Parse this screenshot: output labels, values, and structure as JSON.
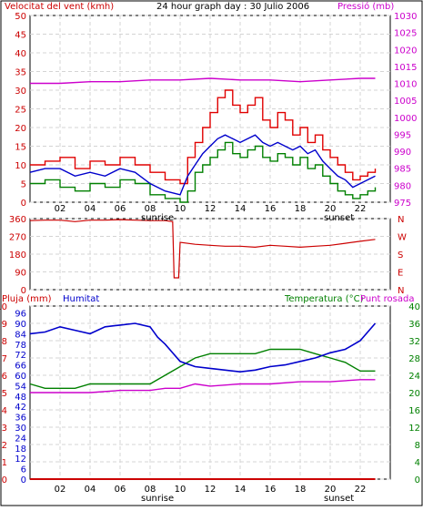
{
  "header": {
    "wind_label": "Velocitat del vent (kmh)",
    "title": "24 hour graph day : 30 Julio 2006",
    "pressure_label": "Pressió (mb)"
  },
  "bottom_header": {
    "rain_label": "Pluja (mm)",
    "humidity_label": "Humitat",
    "temp_label": "Temperatura (°C)",
    "dew_label": "Punt rosada"
  },
  "x_axis": {
    "ticks": [
      "02",
      "04",
      "06",
      "08",
      "10",
      "12",
      "14",
      "16",
      "18",
      "20",
      "22"
    ],
    "sunrise_label": "sunrise",
    "sunset_label": "sunset"
  },
  "colors": {
    "wind_gust": "#e00000",
    "wind_speed": "#0000cc",
    "wind_avg": "#008000",
    "pressure": "#cc00cc",
    "direction": "#cc0000",
    "humidity": "#0000cc",
    "temperature": "#008000",
    "dewpoint": "#cc00cc",
    "rain": "#cc0000"
  },
  "chart_data": [
    {
      "type": "line",
      "title": "24 hour graph day : 30 Julio 2006",
      "x_unit": "hour of day",
      "x_ticks": [
        "02",
        "04",
        "06",
        "08",
        "10",
        "12",
        "14",
        "16",
        "18",
        "20",
        "22"
      ],
      "y_left": {
        "label": "Velocitat del vent (kmh)",
        "ticks": [
          0,
          5,
          10,
          15,
          20,
          25,
          30,
          35,
          40,
          45,
          50
        ],
        "range": [
          0,
          50
        ]
      },
      "y_right": {
        "label": "Pressió (mb)",
        "ticks": [
          975,
          980,
          985,
          990,
          995,
          1000,
          1005,
          1010,
          1015,
          1020,
          1025,
          1030
        ],
        "range": [
          975,
          1030
        ]
      },
      "grid": true,
      "series": [
        {
          "axis": "left",
          "x": [
            0,
            1,
            2,
            3,
            4,
            5,
            6,
            7,
            8,
            9,
            10,
            10.5,
            11,
            11.5,
            12,
            12.5,
            13,
            13.5,
            14,
            14.5,
            15,
            15.5,
            16,
            16.5,
            17,
            17.5,
            18,
            18.5,
            19,
            19.5,
            20,
            20.5,
            21,
            21.5,
            22,
            22.5,
            23
          ],
          "values": [
            10,
            11,
            12,
            9,
            11,
            10,
            12,
            10,
            8,
            6,
            5,
            12,
            16,
            20,
            24,
            28,
            30,
            26,
            24,
            26,
            28,
            22,
            20,
            24,
            22,
            18,
            20,
            16,
            18,
            14,
            12,
            10,
            8,
            6,
            7,
            8,
            9
          ]
        },
        {
          "axis": "left",
          "x": [
            0,
            1,
            2,
            3,
            4,
            5,
            6,
            7,
            8,
            9,
            10,
            10.5,
            11,
            11.5,
            12,
            12.5,
            13,
            13.5,
            14,
            14.5,
            15,
            15.5,
            16,
            16.5,
            17,
            17.5,
            18,
            18.5,
            19,
            19.5,
            20,
            20.5,
            21,
            21.5,
            22,
            22.5,
            23
          ],
          "values": [
            8,
            9,
            9,
            7,
            8,
            7,
            9,
            8,
            5,
            3,
            2,
            7,
            10,
            13,
            15,
            17,
            18,
            17,
            16,
            17,
            18,
            16,
            15,
            16,
            15,
            14,
            15,
            13,
            14,
            11,
            9,
            7,
            6,
            4,
            5,
            6,
            7
          ]
        },
        {
          "axis": "left",
          "x": [
            0,
            1,
            2,
            3,
            4,
            5,
            6,
            7,
            8,
            9,
            10,
            10.5,
            11,
            11.5,
            12,
            12.5,
            13,
            13.5,
            14,
            14.5,
            15,
            15.5,
            16,
            16.5,
            17,
            17.5,
            18,
            18.5,
            19,
            19.5,
            20,
            20.5,
            21,
            21.5,
            22,
            22.5,
            23
          ],
          "values": [
            5,
            6,
            4,
            3,
            5,
            4,
            6,
            5,
            2,
            1,
            0,
            3,
            8,
            10,
            12,
            14,
            16,
            13,
            12,
            14,
            15,
            12,
            11,
            13,
            12,
            10,
            12,
            9,
            10,
            7,
            5,
            3,
            2,
            1,
            2,
            3,
            4
          ]
        },
        {
          "axis": "right",
          "x": [
            0,
            2,
            4,
            6,
            8,
            10,
            12,
            14,
            16,
            18,
            20,
            22,
            23
          ],
          "values": [
            1010,
            1010,
            1010.5,
            1010.5,
            1011,
            1011,
            1011.5,
            1011,
            1011,
            1010.5,
            1011,
            1011.5,
            1011.5
          ]
        }
      ]
    },
    {
      "type": "line",
      "x_unit": "hour of day",
      "y_left": {
        "ticks": [
          0,
          90,
          180,
          270,
          360
        ],
        "range": [
          0,
          360
        ]
      },
      "y_right": {
        "ticks": [
          "N",
          "W",
          "S",
          "E",
          "N"
        ]
      },
      "grid": true,
      "series": [
        {
          "x": [
            0,
            1,
            2,
            3,
            4,
            5,
            6,
            7,
            8,
            9,
            9.5,
            9.6,
            9.9,
            10,
            11,
            12,
            13,
            14,
            15,
            16,
            17,
            18,
            19,
            20,
            21,
            22,
            23
          ],
          "values": [
            350,
            352,
            352,
            345,
            352,
            352,
            355,
            352,
            350,
            350,
            345,
            60,
            60,
            240,
            230,
            225,
            220,
            220,
            215,
            225,
            220,
            215,
            220,
            225,
            235,
            245,
            255
          ]
        }
      ]
    },
    {
      "type": "line",
      "x_unit": "hour of day",
      "y_axes": [
        {
          "label": "Pluja (mm)",
          "ticks": [
            0,
            1,
            2,
            3,
            4,
            5,
            6,
            7,
            8,
            9,
            10
          ],
          "range": [
            0,
            10
          ]
        },
        {
          "label": "Humitat",
          "ticks": [
            0,
            6,
            12,
            18,
            24,
            30,
            36,
            42,
            48,
            54,
            60,
            66,
            72,
            78,
            84,
            90,
            96
          ],
          "range": [
            0,
            100
          ]
        },
        {
          "label": "Temperatura (°C)",
          "ticks": [
            0,
            4,
            8,
            12,
            16,
            20,
            24,
            28,
            32,
            36,
            40
          ],
          "range": [
            0,
            40
          ]
        }
      ],
      "grid": true,
      "series": [
        {
          "axis": "Humitat",
          "x": [
            0,
            1,
            2,
            3,
            4,
            5,
            6,
            7,
            8,
            8.5,
            9,
            10,
            11,
            12,
            13,
            14,
            15,
            16,
            17,
            18,
            19,
            20,
            21,
            22,
            23
          ],
          "values": [
            84,
            85,
            88,
            86,
            84,
            88,
            89,
            90,
            88,
            82,
            78,
            68,
            65,
            64,
            63,
            62,
            63,
            65,
            66,
            68,
            70,
            73,
            75,
            80,
            90
          ]
        },
        {
          "axis": "Temperatura (°C)",
          "x": [
            0,
            1,
            2,
            3,
            4,
            5,
            6,
            7,
            8,
            9,
            10,
            11,
            12,
            13,
            14,
            15,
            16,
            17,
            18,
            19,
            20,
            21,
            22,
            23
          ],
          "values": [
            22,
            21,
            21,
            21,
            22,
            22,
            22,
            22,
            22,
            24,
            26,
            28,
            29,
            29,
            29,
            29,
            30,
            30,
            30,
            29,
            28,
            27,
            25,
            25
          ]
        },
        {
          "axis": "Temperatura (°C)",
          "x": [
            0,
            2,
            4,
            6,
            8,
            9,
            10,
            11,
            12,
            14,
            16,
            18,
            20,
            22,
            23
          ],
          "values": [
            20,
            20,
            20,
            20.5,
            20.5,
            21,
            21,
            22,
            21.5,
            22,
            22,
            22.5,
            22.5,
            23,
            23
          ]
        },
        {
          "axis": "Pluja (mm)",
          "x": [
            0,
            23
          ],
          "values": [
            0,
            0
          ]
        }
      ]
    }
  ]
}
